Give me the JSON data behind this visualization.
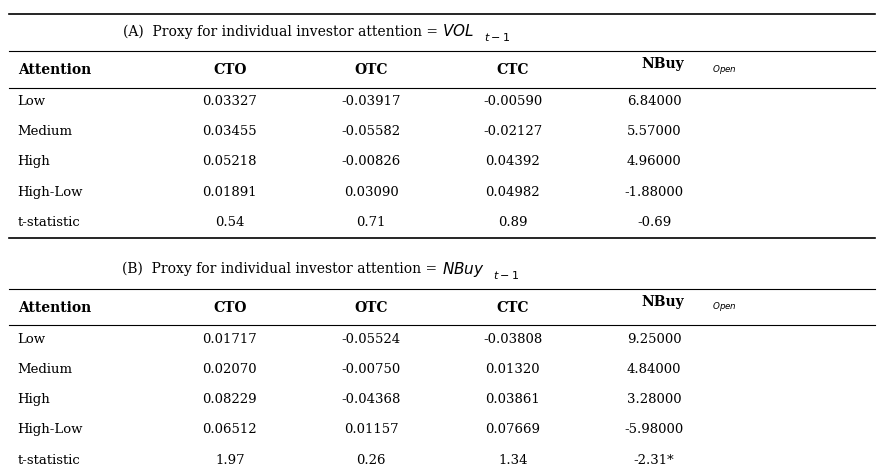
{
  "title_a": "(A)  Proxy for individual investor attention = ",
  "title_a_italic": "VOL",
  "title_a_sub": "t−1",
  "title_b": "(B)  Proxy for individual investor attention = ",
  "title_b_italic": "NBuy",
  "title_b_sub": "t−1",
  "headers": [
    "Attention",
    "CTO",
    "OTC",
    "CTC",
    "NBuy"
  ],
  "nbuy_open_sub": "Open",
  "panel_a_rows": [
    [
      "Low",
      "0.03327",
      "-0.03917",
      "-0.00590",
      "6.84000"
    ],
    [
      "Medium",
      "0.03455",
      "-0.05582",
      "-0.02127",
      "5.57000"
    ],
    [
      "High",
      "0.05218",
      "-0.00826",
      "0.04392",
      "4.96000"
    ],
    [
      "High-Low",
      "0.01891",
      "0.03090",
      "0.04982",
      "-1.88000"
    ],
    [
      "t-statistic",
      "0.54",
      "0.71",
      "0.89",
      "-0.69"
    ]
  ],
  "panel_b_rows": [
    [
      "Low",
      "0.01717",
      "-0.05524",
      "-0.03808",
      "9.25000"
    ],
    [
      "Medium",
      "0.02070",
      "-0.00750",
      "0.01320",
      "4.84000"
    ],
    [
      "High",
      "0.08229",
      "-0.04368",
      "0.03861",
      "3.28000"
    ],
    [
      "High-Low",
      "0.06512",
      "0.01157",
      "0.07669",
      "-5.98000"
    ],
    [
      "t-statistic",
      "1.97",
      "0.26",
      "1.34",
      "-2.31*"
    ]
  ],
  "bg_color": "#ffffff",
  "text_color": "#000000",
  "font_size": 9.5,
  "header_font_size": 10,
  "title_font_size": 10
}
